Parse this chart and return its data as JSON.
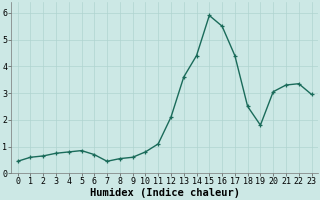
{
  "x": [
    0,
    1,
    2,
    3,
    4,
    5,
    6,
    7,
    8,
    9,
    10,
    11,
    12,
    13,
    14,
    15,
    16,
    17,
    18,
    19,
    20,
    21,
    22,
    23
  ],
  "y": [
    0.45,
    0.6,
    0.65,
    0.75,
    0.8,
    0.85,
    0.7,
    0.45,
    0.55,
    0.6,
    0.8,
    1.1,
    2.1,
    3.6,
    4.4,
    5.9,
    5.5,
    4.4,
    2.5,
    1.8,
    3.05,
    3.3,
    3.35,
    2.95
  ],
  "line_color": "#1a6b5a",
  "marker": "+",
  "marker_size": 3,
  "line_width": 1.0,
  "background_color": "#cce8e5",
  "grid_color": "#b0d4d0",
  "xlabel": "Humidex (Indice chaleur)",
  "ylabel": "",
  "xlim": [
    -0.5,
    23.5
  ],
  "ylim": [
    0,
    6.4
  ],
  "yticks": [
    0,
    1,
    2,
    3,
    4,
    5,
    6
  ],
  "xticks": [
    0,
    1,
    2,
    3,
    4,
    5,
    6,
    7,
    8,
    9,
    10,
    11,
    12,
    13,
    14,
    15,
    16,
    17,
    18,
    19,
    20,
    21,
    22,
    23
  ],
  "xlabel_fontsize": 7.5,
  "tick_fontsize": 6.0
}
